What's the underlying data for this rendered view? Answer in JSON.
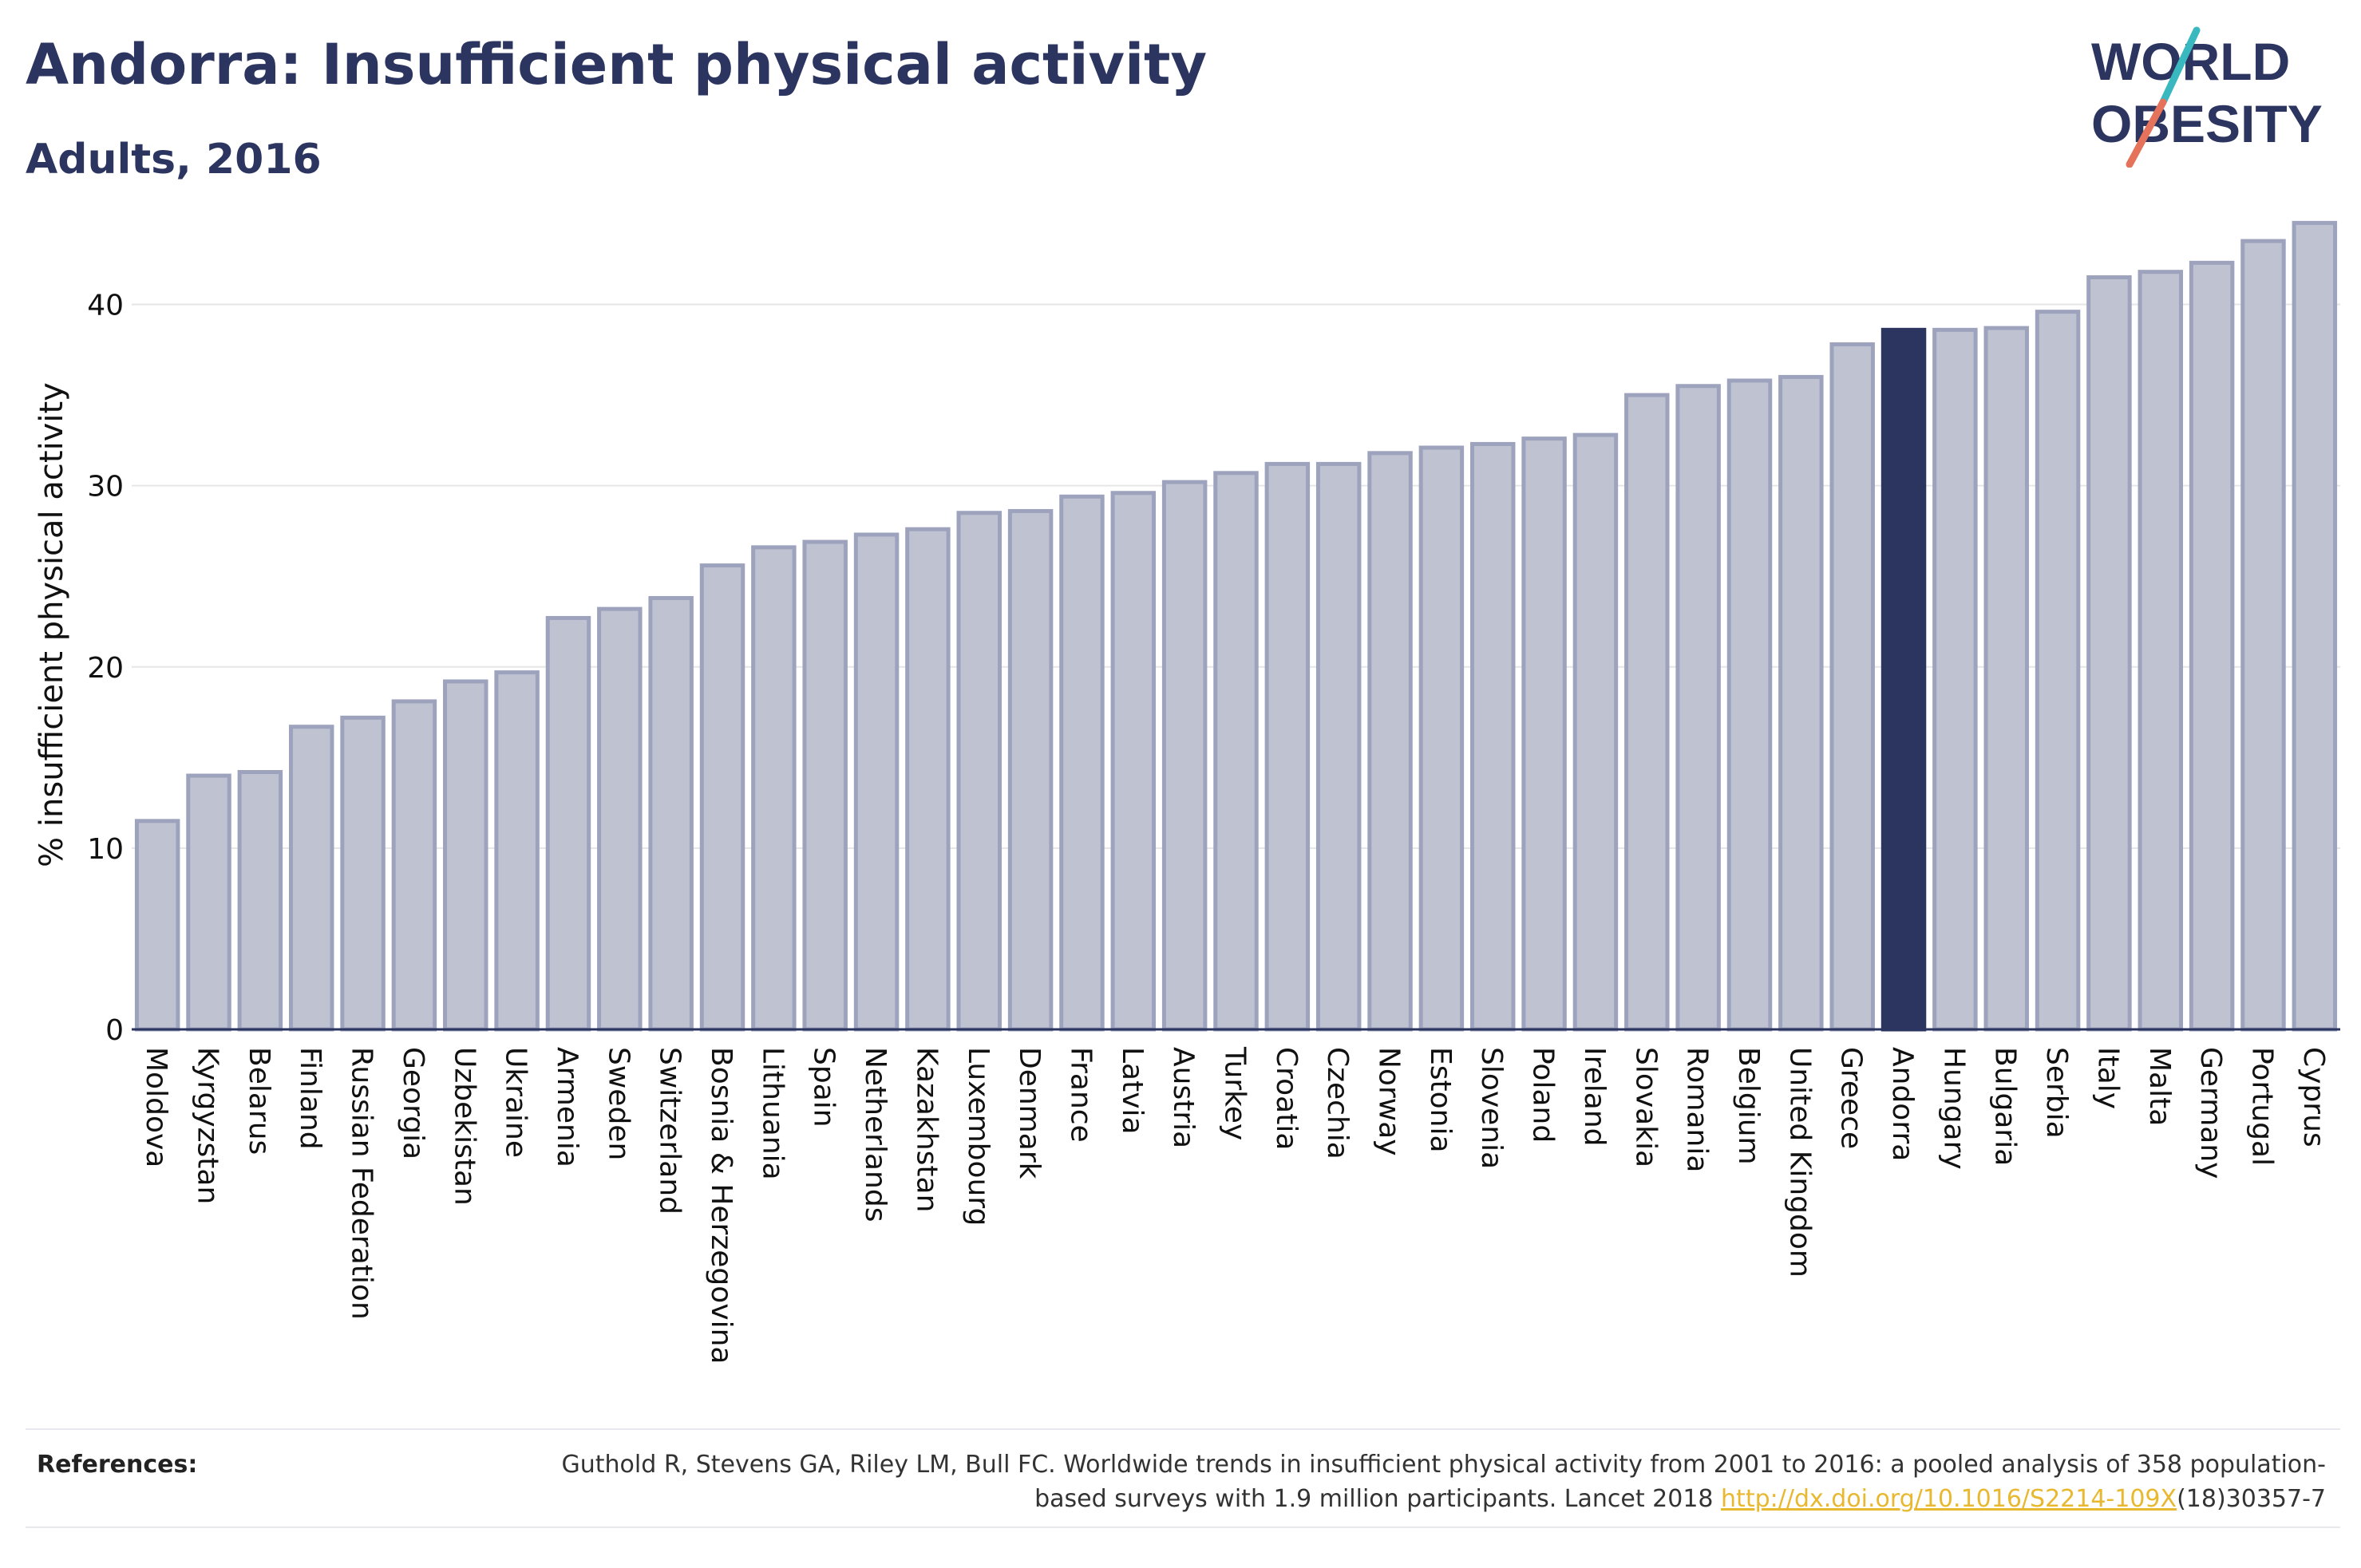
{
  "header": {
    "title": "Andorra: Insufficient physical activity",
    "subtitle": "Adults, 2016"
  },
  "logo": {
    "line1": "WORLD",
    "line2": "OBESITY",
    "colors": {
      "text": "#2b3560",
      "slash_teal": "#3ab8c0",
      "slash_coral": "#e5735c"
    }
  },
  "references": {
    "label": "References:",
    "text_before_link": "Guthold R, Stevens GA, Riley LM, Bull FC. Worldwide trends in insufficient physical activity from 2001 to 2016: a pooled analysis of 358 population-based surveys with 1.9 million participants. Lancet 2018 ",
    "link": "http://dx.doi.org/10.1016/S2214-109X",
    "text_after_link": "(18)30357-7"
  },
  "chart_data": {
    "type": "bar",
    "title": "Andorra: Insufficient physical activity",
    "subtitle": "Adults, 2016",
    "xlabel": "",
    "ylabel": "% insufficient physical activity",
    "ylim": [
      0,
      45
    ],
    "yticks": [
      0,
      10,
      20,
      30,
      40
    ],
    "grid": true,
    "highlight": "Andorra",
    "colors": {
      "bar_fill": "#bfc2d1",
      "bar_edge": "#9ea3bd",
      "highlight": "#2b3560",
      "grid": "#e6e6e6"
    },
    "categories": [
      "Moldova",
      "Kyrgyzstan",
      "Belarus",
      "Finland",
      "Russian Federation",
      "Georgia",
      "Uzbekistan",
      "Ukraine",
      "Armenia",
      "Sweden",
      "Switzerland",
      "Bosnia & Herzegovina",
      "Lithuania",
      "Spain",
      "Netherlands",
      "Kazakhstan",
      "Luxembourg",
      "Denmark",
      "France",
      "Latvia",
      "Austria",
      "Turkey",
      "Croatia",
      "Czechia",
      "Norway",
      "Estonia",
      "Slovenia",
      "Poland",
      "Ireland",
      "Slovakia",
      "Romania",
      "Belgium",
      "United Kingdom",
      "Greece",
      "Andorra",
      "Hungary",
      "Bulgaria",
      "Serbia",
      "Italy",
      "Malta",
      "Germany",
      "Portugal",
      "Cyprus"
    ],
    "values": [
      11.5,
      14.0,
      14.2,
      16.7,
      17.2,
      18.1,
      19.2,
      19.7,
      22.7,
      23.2,
      23.8,
      25.6,
      26.6,
      26.9,
      27.3,
      27.6,
      28.5,
      28.6,
      29.4,
      29.6,
      30.2,
      30.7,
      31.2,
      31.2,
      31.8,
      32.1,
      32.3,
      32.6,
      32.8,
      35.0,
      35.5,
      35.8,
      36.0,
      37.8,
      38.6,
      38.6,
      38.7,
      39.6,
      41.5,
      41.8,
      42.3,
      43.5,
      44.5
    ]
  }
}
